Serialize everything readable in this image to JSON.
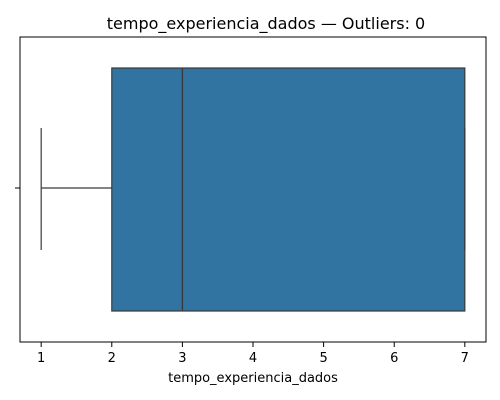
{
  "chart_data": {
    "type": "box",
    "title": "tempo_experiencia_dados — Outliers: 0",
    "xlabel": "tempo_experiencia_dados",
    "ylabel": "",
    "xlim": [
      0.7,
      7.3
    ],
    "x_ticks": [
      1,
      2,
      3,
      4,
      5,
      6,
      7
    ],
    "box": {
      "min": 1,
      "q1": 2,
      "median": 3,
      "q3": 7,
      "max": 7,
      "outliers": []
    },
    "colors": {
      "box_fill": "#3274a1",
      "line": "#3a3a3a",
      "axis": "#000000"
    }
  }
}
